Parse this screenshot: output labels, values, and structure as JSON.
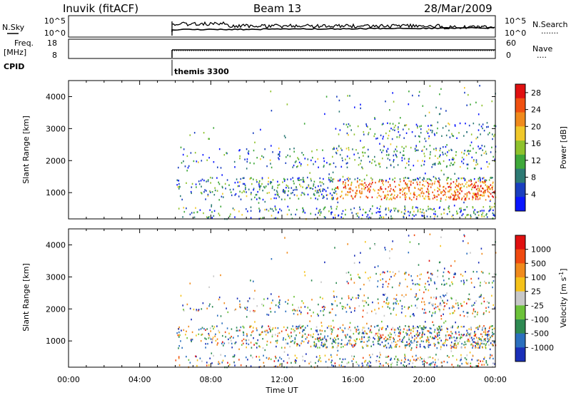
{
  "header": {
    "station": "Inuvik (fitACF)",
    "beam": "Beam 13",
    "date": "28/Mar/2009"
  },
  "noise_panel": {
    "left_label": "N.Sky",
    "left_ticks": [
      "10^5",
      "10^0"
    ],
    "right_ticks": [
      "10^5",
      "10^0"
    ],
    "right_label": "N.Search",
    "right_label_line": "......."
  },
  "freq_panel": {
    "left_label_1": "Freq.",
    "left_label_2": "[MHz]",
    "left_ticks": [
      "18",
      "8"
    ],
    "right_ticks": [
      "60",
      "0"
    ],
    "right_label": "Nave",
    "right_label_line": "...."
  },
  "cpid": {
    "label": "CPID",
    "program": "themis 3300"
  },
  "time_axis": {
    "label": "Time UT",
    "ticks": [
      "00:00",
      "04:00",
      "08:00",
      "12:00",
      "16:00",
      "20:00",
      "00:00"
    ]
  },
  "chart_data": [
    {
      "type": "heatmap",
      "name": "power",
      "ylabel": "Slant Range [km]",
      "y_ticks": [
        "1000",
        "2000",
        "3000",
        "4000"
      ],
      "ylim": [
        180,
        4500
      ],
      "xlim_hours": [
        0,
        24
      ],
      "data_start_hour": 6,
      "colorbar": {
        "label": "Power [dB]",
        "ticks": [
          "4",
          "8",
          "12",
          "16",
          "20",
          "24",
          "28"
        ],
        "range": [
          0,
          30
        ],
        "colors": [
          "#0a16ff",
          "#1a3fbf",
          "#2d7a74",
          "#3fa83a",
          "#8fc22c",
          "#f0c82a",
          "#f08a1c",
          "#f05010",
          "#e01010"
        ]
      }
    },
    {
      "type": "heatmap",
      "name": "velocity",
      "ylabel": "Slant Range [km]",
      "y_ticks": [
        "1000",
        "2000",
        "3000",
        "4000"
      ],
      "ylim": [
        180,
        4500
      ],
      "xlim_hours": [
        0,
        24
      ],
      "data_start_hour": 6,
      "colorbar": {
        "label": "Velocity [m s^-1]",
        "ticks": [
          "1000",
          "500",
          "100",
          "25",
          "-25",
          "-100",
          "-500",
          "-1000"
        ],
        "colors": [
          "#1a2fb8",
          "#2b6fbe",
          "#2e8a52",
          "#6cc23a",
          "#c8c8c8",
          "#f5c21a",
          "#f08a1c",
          "#f04a10",
          "#e01010"
        ]
      }
    }
  ]
}
